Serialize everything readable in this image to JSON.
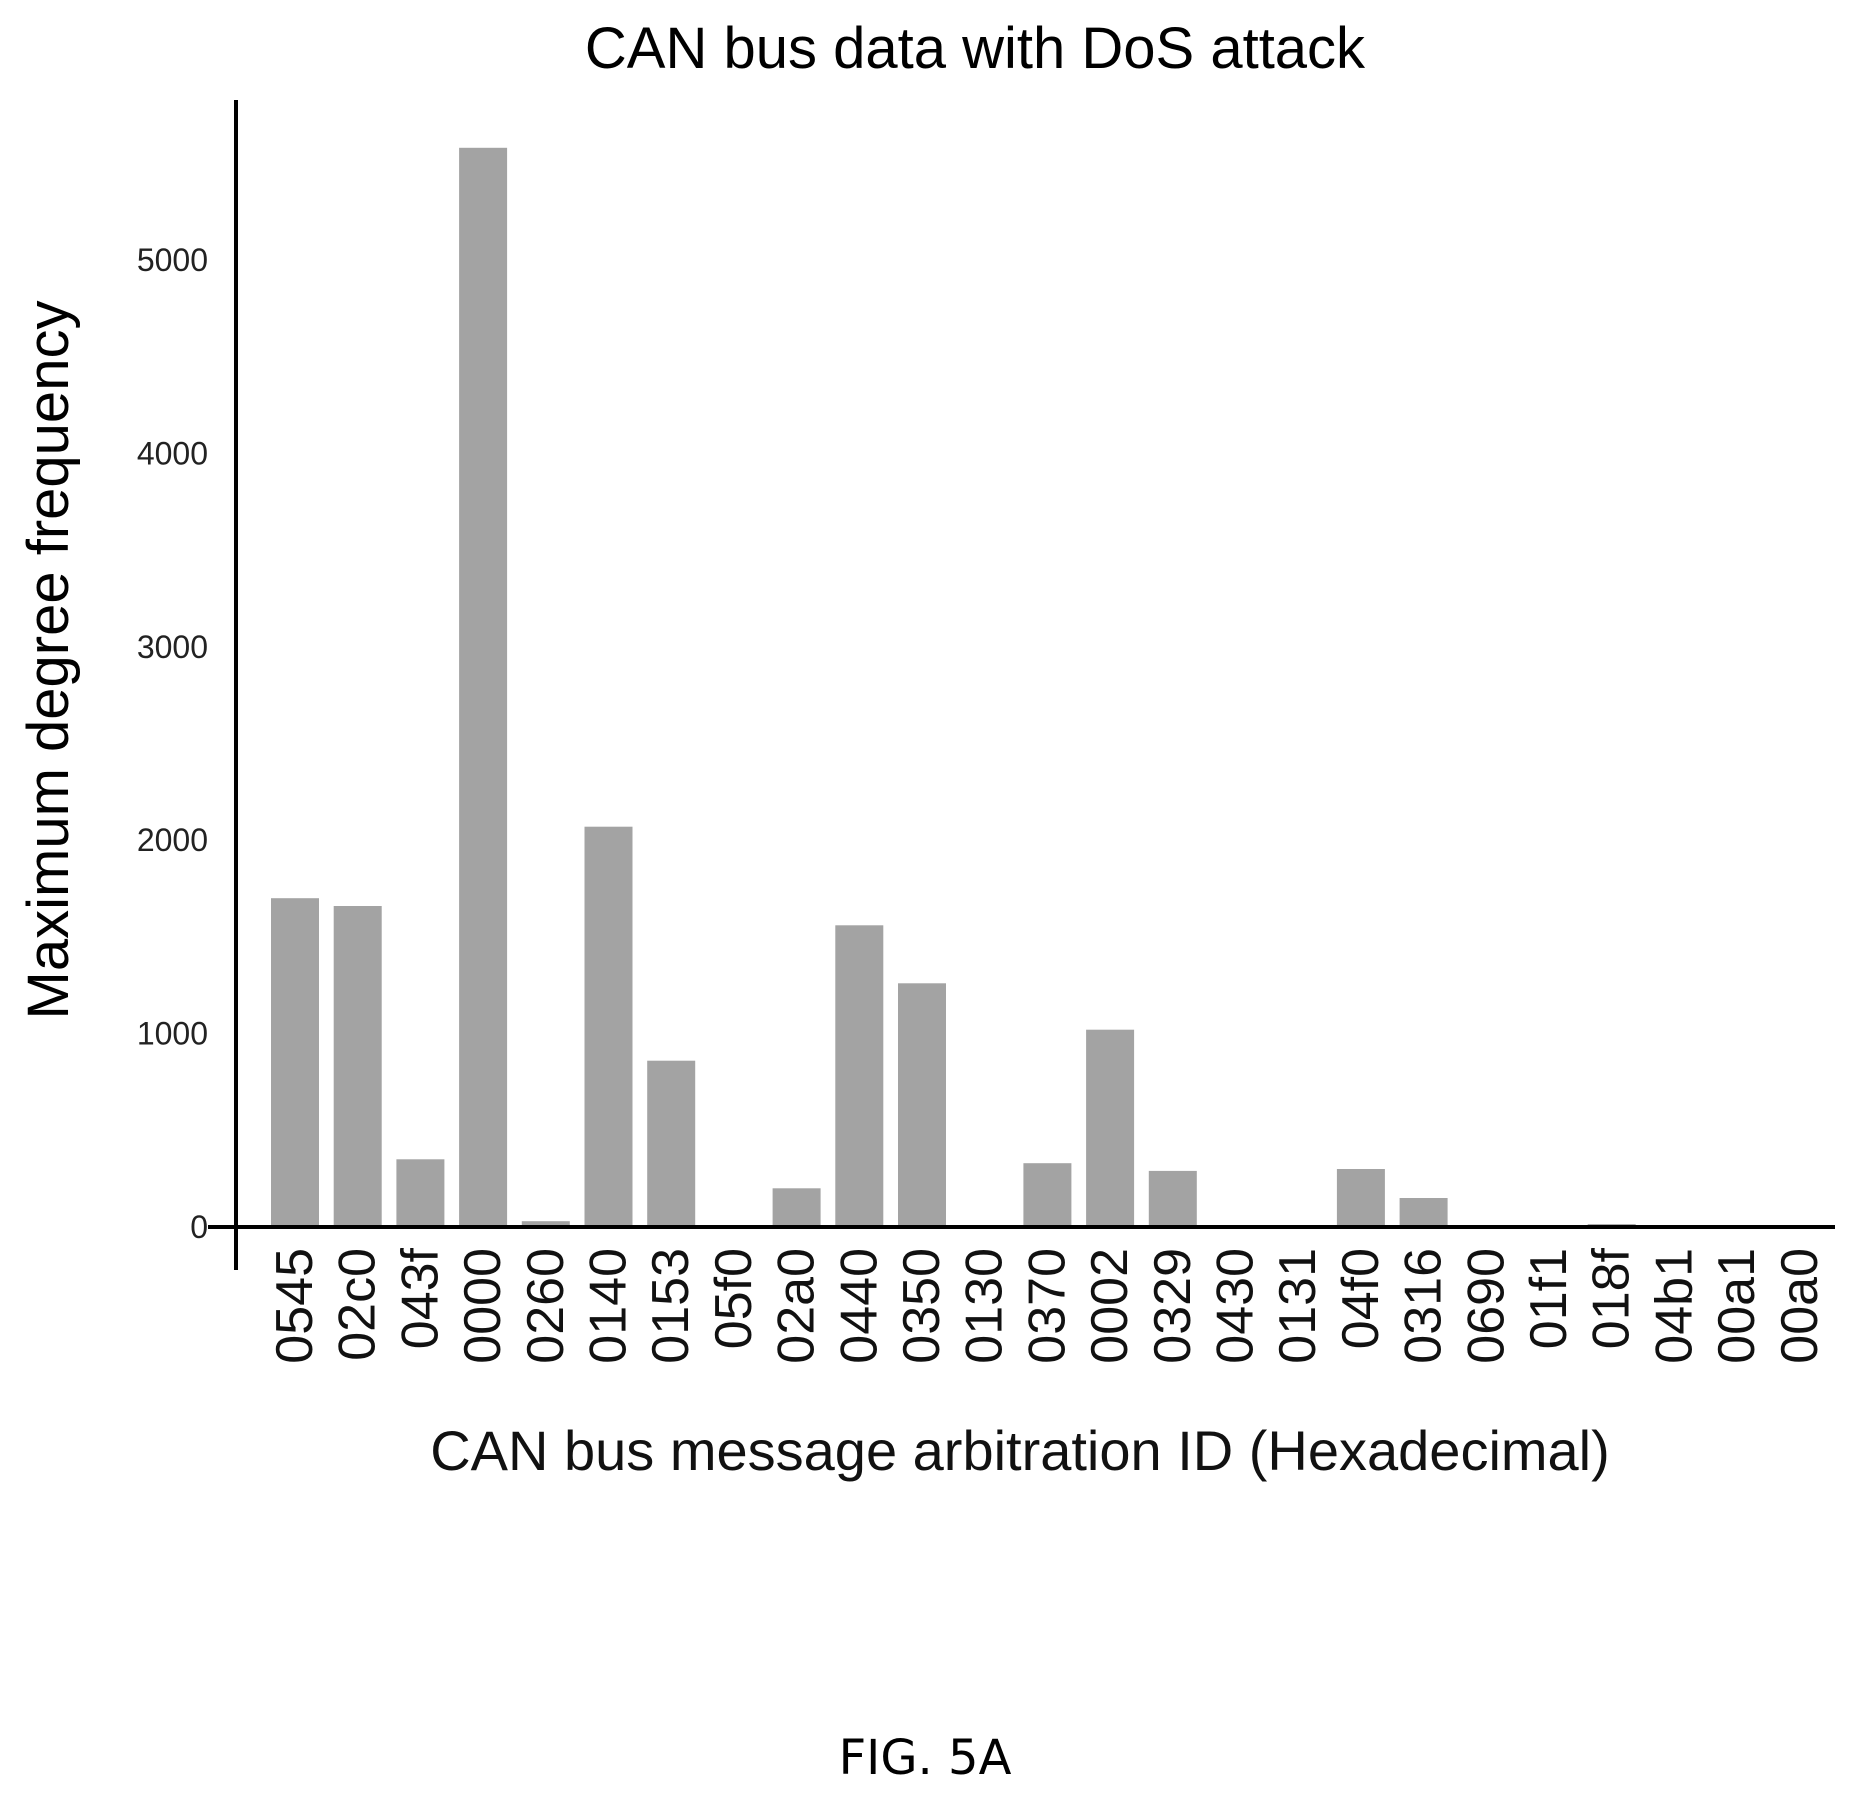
{
  "chart_data": {
    "type": "bar",
    "title": "CAN bus data with DoS attack",
    "xlabel": "CAN bus message arbitration ID (Hexadecimal)",
    "ylabel": "Maximum degree frequency",
    "categories": [
      "0545",
      "02c0",
      "043f",
      "0000",
      "0260",
      "0140",
      "0153",
      "05f0",
      "02a0",
      "0440",
      "0350",
      "0130",
      "0370",
      "0002",
      "0329",
      "0430",
      "0131",
      "04f0",
      "0316",
      "0690",
      "01f1",
      "018f",
      "04b1",
      "00a1",
      "00a0"
    ],
    "values": [
      1700,
      1660,
      350,
      5580,
      30,
      2070,
      860,
      0,
      200,
      1560,
      1260,
      0,
      330,
      1020,
      290,
      0,
      0,
      300,
      150,
      0,
      0,
      15,
      0,
      0,
      0
    ],
    "yticks": [
      0,
      1000,
      2000,
      3000,
      4000,
      5000
    ],
    "ylim": [
      0,
      5580
    ],
    "grid": false,
    "colors": {
      "bar": "#a3a3a3",
      "axis": "#000000"
    }
  },
  "caption": "FIG. 5A"
}
